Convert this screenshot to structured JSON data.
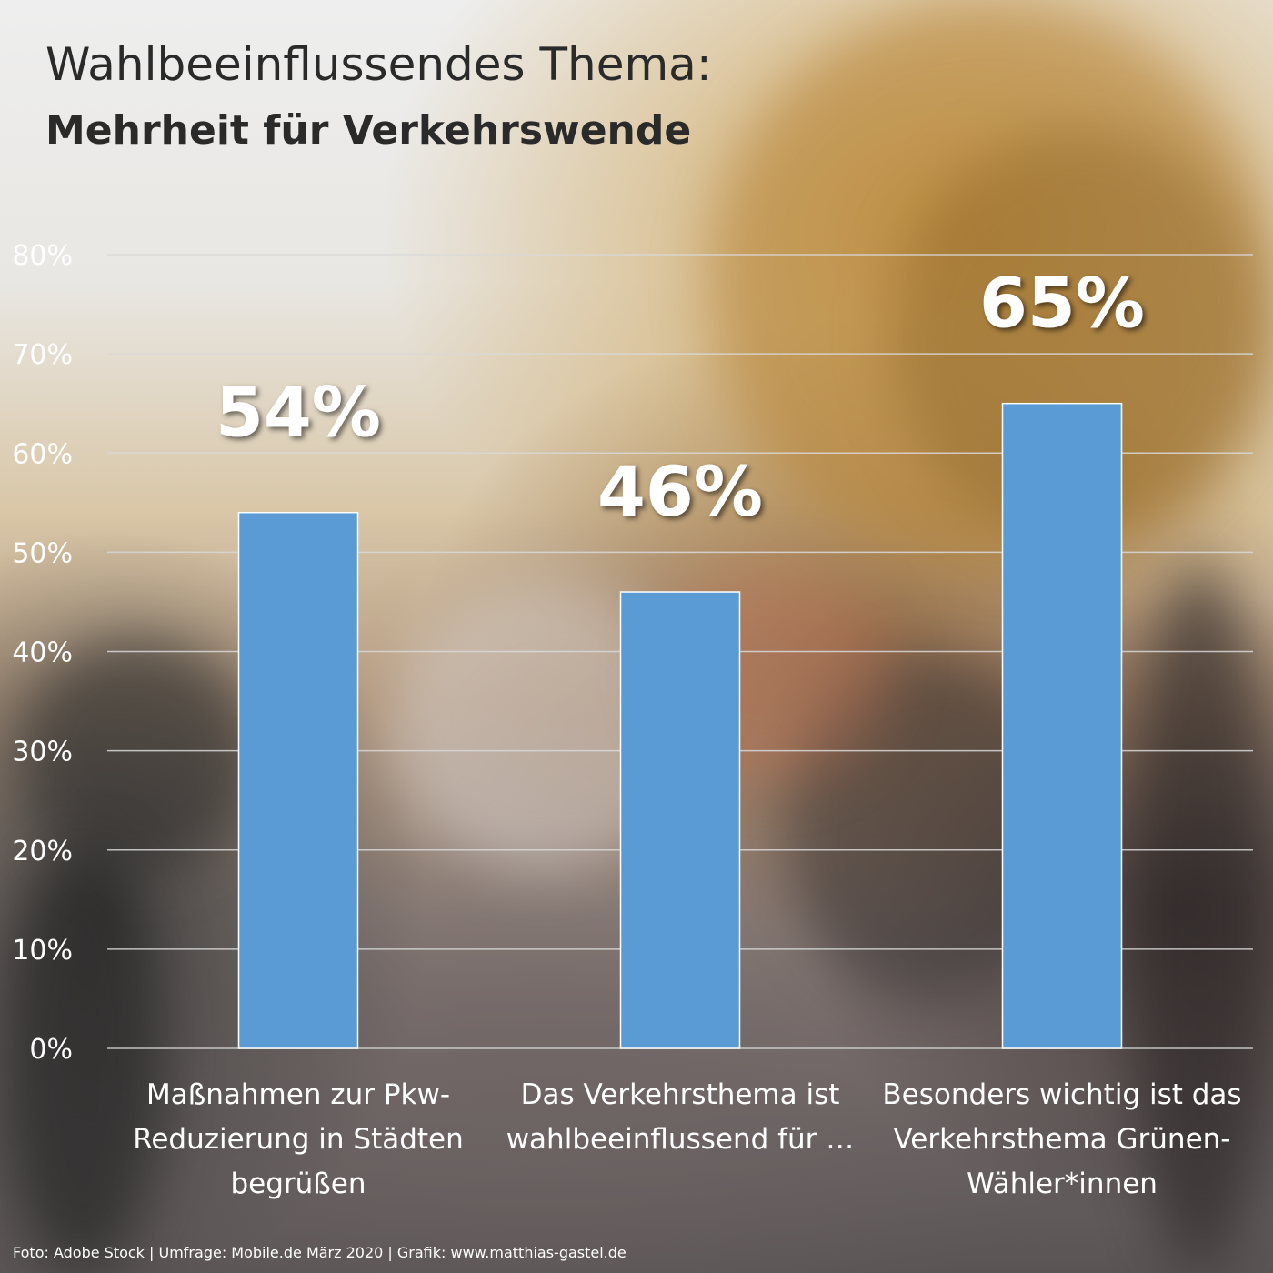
{
  "header": {
    "title": "Wahlbeeinflussendes Thema:",
    "subtitle": "Mehrheit für Verkehrswende"
  },
  "footer": {
    "credit": "Foto: Adobe Stock | Umfrage: Mobile.de März 2020 |  Grafik: www.matthias-gastel.de"
  },
  "chart_data": {
    "type": "bar",
    "categories": [
      [
        "Maßnahmen zur Pkw-",
        "Reduzierung in Städten",
        "begrüßen"
      ],
      [
        "Das Verkehrsthema ist",
        "wahlbeeinflussend für …"
      ],
      [
        "Besonders wichtig ist das",
        "Verkehrsthema Grünen-",
        "Wähler*innen"
      ]
    ],
    "values": [
      54,
      46,
      65
    ],
    "data_labels": [
      "54%",
      "46%",
      "65%"
    ],
    "ylim": [
      0,
      80
    ],
    "yticks": [
      0,
      10,
      20,
      30,
      40,
      50,
      60,
      70,
      80
    ],
    "ytick_labels": [
      "0%",
      "10%",
      "20%",
      "30%",
      "40%",
      "50%",
      "60%",
      "70%",
      "80%"
    ],
    "grid": true,
    "legend": "none",
    "bar_color": "#5b9bd5",
    "grid_color": "#d9d9d9"
  }
}
